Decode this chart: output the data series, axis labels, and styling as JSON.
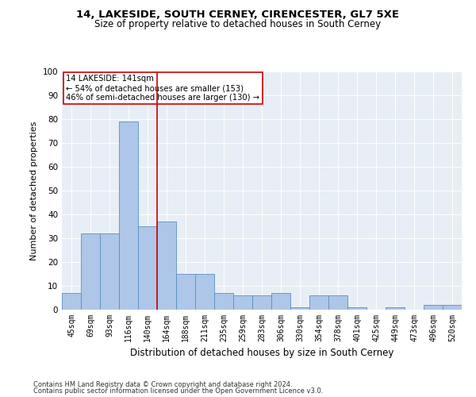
{
  "title1": "14, LAKESIDE, SOUTH CERNEY, CIRENCESTER, GL7 5XE",
  "title2": "Size of property relative to detached houses in South Cerney",
  "xlabel": "Distribution of detached houses by size in South Cerney",
  "ylabel": "Number of detached properties",
  "categories": [
    "45sqm",
    "69sqm",
    "93sqm",
    "116sqm",
    "140sqm",
    "164sqm",
    "188sqm",
    "211sqm",
    "235sqm",
    "259sqm",
    "283sqm",
    "306sqm",
    "330sqm",
    "354sqm",
    "378sqm",
    "401sqm",
    "425sqm",
    "449sqm",
    "473sqm",
    "496sqm",
    "520sqm"
  ],
  "values": [
    7,
    32,
    32,
    79,
    35,
    37,
    15,
    15,
    7,
    6,
    6,
    7,
    1,
    6,
    6,
    1,
    0,
    1,
    0,
    2,
    2
  ],
  "bar_color": "#aec6e8",
  "bar_edge_color": "#5a8fc0",
  "vline_x": 4.5,
  "vline_color": "#cc0000",
  "annotation_text": "14 LAKESIDE: 141sqm\n← 54% of detached houses are smaller (153)\n46% of semi-detached houses are larger (130) →",
  "annotation_box_color": "#ffffff",
  "annotation_box_edge": "#cc0000",
  "ylim": [
    0,
    100
  ],
  "yticks": [
    0,
    10,
    20,
    30,
    40,
    50,
    60,
    70,
    80,
    90,
    100
  ],
  "bg_color": "#e8eef5",
  "footer1": "Contains HM Land Registry data © Crown copyright and database right 2024.",
  "footer2": "Contains public sector information licensed under the Open Government Licence v3.0."
}
